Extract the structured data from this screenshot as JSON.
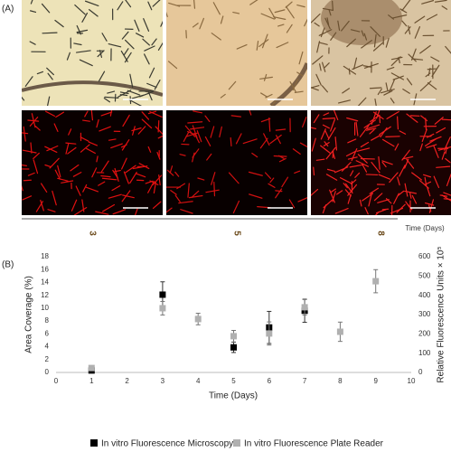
{
  "panel_a": {
    "label": "(A)",
    "time_axis_label": "Time (Days)",
    "days": [
      "3",
      "5",
      "8"
    ]
  },
  "panel_b": {
    "label": "(B)"
  },
  "chart_data": {
    "type": "scatter",
    "x_label": "Time (Days)",
    "y_label": "Area Coverage (%)",
    "y2_label": "Relative Fluorescence Units × 10⁵",
    "xlim": [
      0,
      10
    ],
    "xticks": [
      0,
      1,
      2,
      3,
      4,
      5,
      6,
      7,
      8,
      9,
      10
    ],
    "ylim": [
      0,
      18
    ],
    "yticks": [
      0,
      2,
      4,
      6,
      8,
      10,
      12,
      14,
      16,
      18
    ],
    "y2lim": [
      0,
      600
    ],
    "y2ticks": [
      0,
      100,
      200,
      300,
      400,
      500,
      600
    ],
    "series": [
      {
        "name": "In vitro Fluorescence Microscopy",
        "color": "#000000",
        "x": [
          1,
          3,
          5,
          6,
          7
        ],
        "values": [
          0.3,
          12.1,
          3.9,
          7.0,
          9.6
        ],
        "errors": [
          0.2,
          2.0,
          0.8,
          2.5,
          1.8
        ]
      },
      {
        "name": "In vitro Fluorescence Plate Reader",
        "color": "#b0b0b0",
        "axis": "y2",
        "x": [
          1,
          3,
          4,
          5,
          6,
          7,
          8,
          9
        ],
        "values": [
          23,
          333,
          277,
          188,
          202,
          338,
          211,
          473
        ],
        "errors": [
          5,
          35,
          30,
          30,
          60,
          40,
          50,
          60
        ]
      }
    ]
  }
}
